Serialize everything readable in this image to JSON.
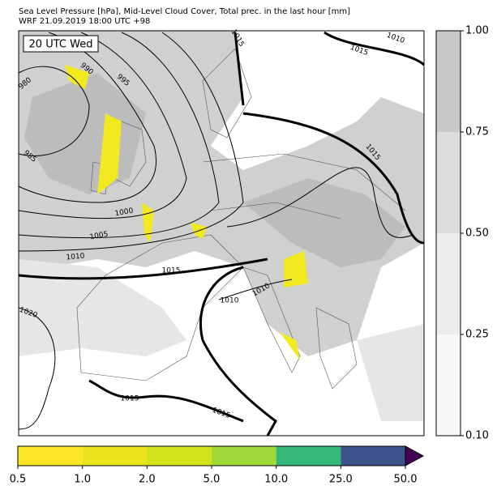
{
  "header": {
    "title": "Sea Level Pressure [hPa], Mid-Level Cloud Cover, Total prec. in the last hour [mm]",
    "subtitle": "WRF 21.09.2019 18:00 UTC +98"
  },
  "map": {
    "time_label": "20 UTC Wed",
    "isobar_labels": [
      "1015",
      "1010",
      "1015",
      "990",
      "995",
      "980",
      "985",
      "1000",
      "1005",
      "1010",
      "1015",
      "1015",
      "1010",
      "1010",
      "1020",
      "1015",
      "1015"
    ]
  },
  "cloud_colorbar": {
    "ticks": [
      "1.00",
      "0.75",
      "0.50",
      "0.25",
      "0.10"
    ],
    "colors": [
      "#c8c8c8",
      "#dcdcdc",
      "#ececec",
      "#f7f7f7"
    ]
  },
  "precip_colorbar": {
    "ticks": [
      "0.5",
      "1.0",
      "2.0",
      "5.0",
      "10.0",
      "25.0",
      "50.0"
    ],
    "colors": [
      "#fde725",
      "#eae51a",
      "#d2e21b",
      "#a0da39",
      "#35b779",
      "#3b528b"
    ],
    "extend_color": "#440154"
  }
}
